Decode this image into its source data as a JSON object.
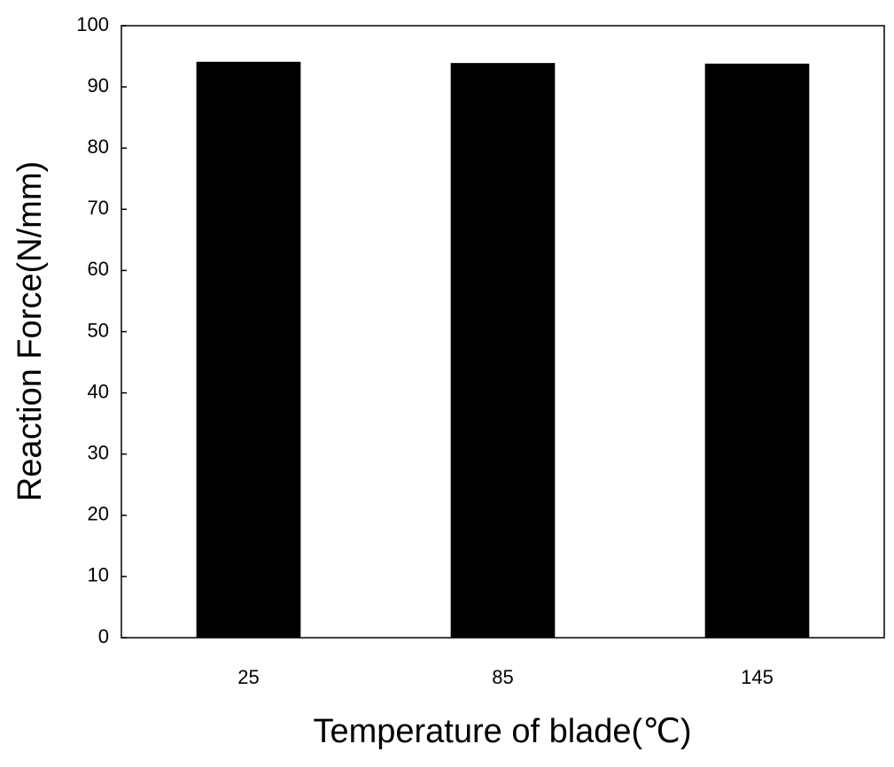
{
  "chart_data": {
    "type": "bar",
    "x_label": "Temperature of blade(℃)",
    "y_label": "Reaction Force(N/mm)",
    "categories": [
      "25",
      "85",
      "145"
    ],
    "values": [
      94.1,
      93.9,
      93.8
    ],
    "color": "#000000",
    "ylim": [
      0,
      100
    ],
    "yticks": [
      0,
      10,
      20,
      30,
      40,
      50,
      60,
      70,
      80,
      90,
      100
    ],
    "grid": false
  }
}
